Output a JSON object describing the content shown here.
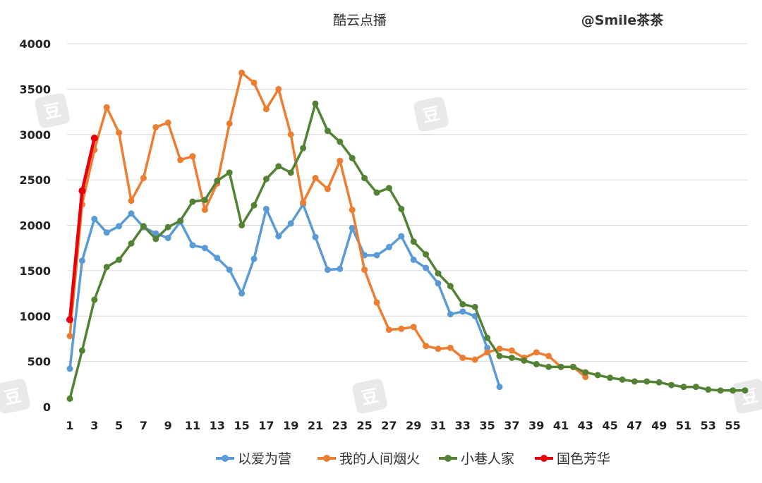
{
  "chart_data": {
    "type": "line",
    "title": "酷云点播",
    "credit": "@Smile茶茶",
    "ylim": [
      0,
      4000
    ],
    "yticks": [
      "0",
      "500",
      "1000",
      "1500",
      "2000",
      "2500",
      "3000",
      "3500",
      "4000"
    ],
    "xticks": [
      "1",
      "3",
      "5",
      "7",
      "9",
      "11",
      "13",
      "15",
      "17",
      "19",
      "21",
      "23",
      "25",
      "27",
      "29",
      "31",
      "33",
      "35",
      "37",
      "39",
      "41",
      "43",
      "45",
      "47",
      "49",
      "51",
      "53",
      "55"
    ],
    "xlim": [
      1,
      56
    ],
    "grid": true,
    "legend_position": "bottom",
    "series": [
      {
        "name": "以爱为营",
        "color": "#5b9bd5",
        "x": [
          1,
          2,
          3,
          4,
          5,
          6,
          7,
          8,
          9,
          10,
          11,
          12,
          13,
          14,
          15,
          16,
          17,
          18,
          19,
          20,
          21,
          22,
          23,
          24,
          25,
          26,
          27,
          28,
          29,
          30,
          31,
          32,
          33,
          34,
          35,
          36
        ],
        "values": [
          420,
          1610,
          2070,
          1920,
          1990,
          2130,
          1980,
          1910,
          1860,
          2040,
          1780,
          1750,
          1640,
          1510,
          1250,
          1630,
          2180,
          1880,
          2020,
          2230,
          1870,
          1510,
          1520,
          1970,
          1670,
          1670,
          1760,
          1880,
          1620,
          1530,
          1360,
          1020,
          1050,
          1000,
          650,
          220
        ]
      },
      {
        "name": "我的人间烟火",
        "color": "#ed7d31",
        "x": [
          1,
          2,
          3,
          4,
          5,
          6,
          7,
          8,
          9,
          10,
          11,
          12,
          13,
          14,
          15,
          16,
          17,
          18,
          19,
          20,
          21,
          22,
          23,
          24,
          25,
          26,
          27,
          28,
          29,
          30,
          31,
          32,
          33,
          34,
          35,
          36,
          37,
          38,
          39,
          40,
          41,
          42,
          43
        ],
        "values": [
          780,
          2230,
          2830,
          3300,
          3020,
          2270,
          2520,
          3080,
          3130,
          2720,
          2760,
          2170,
          2460,
          3120,
          3680,
          3570,
          3280,
          3500,
          3000,
          2250,
          2520,
          2400,
          2710,
          2170,
          1510,
          1150,
          850,
          860,
          880,
          670,
          640,
          650,
          540,
          520,
          600,
          640,
          620,
          540,
          600,
          560,
          440,
          440,
          330
        ]
      },
      {
        "name": "小巷人家",
        "color": "#548235",
        "x": [
          1,
          2,
          3,
          4,
          5,
          6,
          7,
          8,
          9,
          10,
          11,
          12,
          13,
          14,
          15,
          16,
          17,
          18,
          19,
          20,
          21,
          22,
          23,
          24,
          25,
          26,
          27,
          28,
          29,
          30,
          31,
          32,
          33,
          34,
          35,
          36,
          37,
          38,
          39,
          40,
          41,
          42,
          43,
          44,
          45,
          46,
          47,
          48,
          49,
          50,
          51,
          52,
          53,
          54,
          55,
          56
        ],
        "values": [
          90,
          620,
          1180,
          1540,
          1620,
          1800,
          1990,
          1850,
          1980,
          2050,
          2260,
          2280,
          2490,
          2580,
          2000,
          2220,
          2510,
          2650,
          2580,
          2850,
          3340,
          3040,
          2920,
          2740,
          2520,
          2360,
          2410,
          2180,
          1820,
          1680,
          1470,
          1330,
          1130,
          1100,
          760,
          560,
          540,
          510,
          470,
          440,
          440,
          440,
          380,
          350,
          320,
          300,
          280,
          280,
          270,
          240,
          220,
          220,
          190,
          180,
          180,
          180
        ]
      },
      {
        "name": "国色芳华",
        "color": "#e8000b",
        "x": [
          1,
          2,
          3
        ],
        "values": [
          960,
          2380,
          2960
        ]
      }
    ]
  }
}
